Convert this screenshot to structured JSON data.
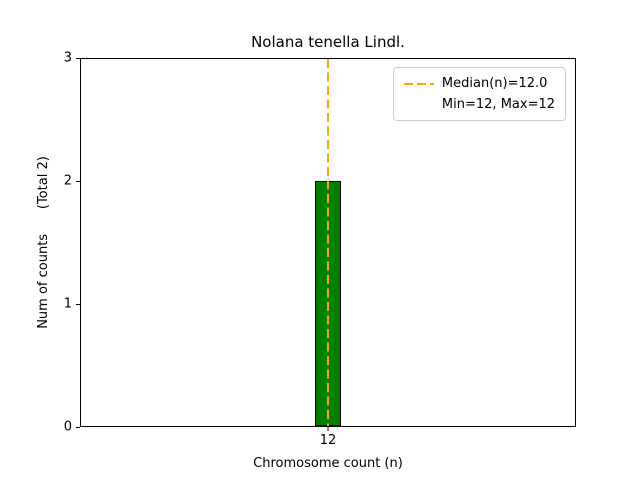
{
  "chart_data": {
    "type": "bar",
    "title": "Nolana tenella Lindl.",
    "xlabel": "Chromosome count (n)",
    "ylabel": "Num of counts      (Total 2)",
    "categories": [
      "12"
    ],
    "values": [
      2
    ],
    "total_counts": 2,
    "ylim": [
      0,
      3
    ],
    "yticks": [
      0,
      1,
      2,
      3
    ],
    "xticks": [
      "12"
    ],
    "grid": false,
    "bar_color": "#008000",
    "bar_edge_color": "#000000",
    "median_line": {
      "value": 12.0,
      "color": "#ffa500",
      "style": "dashed"
    },
    "legend": {
      "position": "upper right",
      "entries": [
        {
          "label": "Median(n)=12.0",
          "handle": "dashed-orange-line"
        },
        {
          "label": "Min=12, Max=12",
          "handle": "none"
        }
      ]
    }
  }
}
